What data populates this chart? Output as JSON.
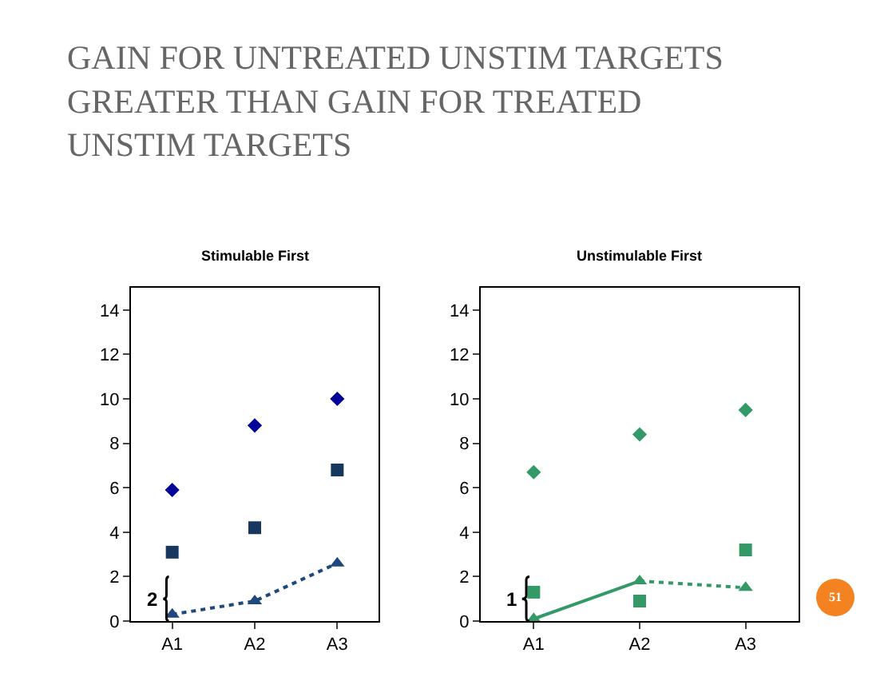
{
  "chart_data": [
    {
      "type": "scatter",
      "title": "Stimulable First",
      "categories": [
        "A1",
        "A2",
        "A3"
      ],
      "ylim": [
        0,
        15
      ],
      "yticks": [
        0,
        2,
        4,
        6,
        8,
        10,
        12,
        14
      ],
      "series": [
        {
          "color": "#000099",
          "marker": "diamond",
          "values": [
            5.9,
            8.8,
            10.0
          ]
        },
        {
          "color": "#17375e",
          "marker": "square",
          "values": [
            3.1,
            4.2,
            6.8
          ]
        },
        {
          "type": "line",
          "color": "#1f497d",
          "marker": "triangle",
          "line_style": "dotted",
          "values": [
            0.3,
            0.9,
            2.6
          ]
        }
      ],
      "annotations": [
        "GAIN FOR UNTREATED UNSTIM TARGETS GREATER THAN GAIN FOR TREATED UNSTIM TARGETS",
        "2"
      ]
    },
    {
      "type": "scatter",
      "title": "Unstimulable First",
      "categories": [
        "A1",
        "A2",
        "A3"
      ],
      "ylim": [
        0,
        15
      ],
      "yticks": [
        0,
        2,
        4,
        6,
        8,
        10,
        12,
        14
      ],
      "series": [
        {
          "color": "#339966",
          "marker": "diamond",
          "values": [
            6.7,
            8.4,
            9.5
          ]
        },
        {
          "color": "#339966",
          "marker": "square",
          "values": [
            1.3,
            0.9,
            3.2
          ]
        },
        {
          "type": "line",
          "color": "#339966",
          "marker": "none",
          "line_style": "solid",
          "values": [
            0.1,
            1.8,
            null
          ]
        },
        {
          "type": "line",
          "color": "#339966",
          "marker": "none",
          "line_style": "dotted",
          "values": [
            null,
            1.8,
            1.5
          ]
        },
        {
          "color": "#339966",
          "marker": "triangle",
          "values": [
            0.1,
            1.8,
            1.5
          ]
        }
      ],
      "annotations": [
        "1",
        "51"
      ]
    }
  ]
}
